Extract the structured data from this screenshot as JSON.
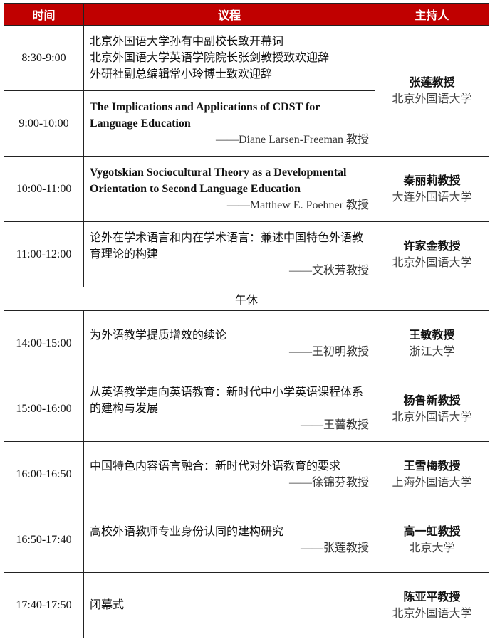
{
  "header": {
    "time": "时间",
    "agenda": "议程",
    "host": "主持人"
  },
  "rows": [
    {
      "time": "8:30-9:00",
      "lines": [
        "北京外国语大学孙有中副校长致开幕词",
        "北京外国语大学英语学院院长张剑教授致欢迎辞",
        "外研社副总编辑常小玲博士致欢迎辞"
      ]
    },
    {
      "time": "9:00-10:00",
      "title": "The Implications and Applications of CDST for Language Education",
      "speaker": "——Diane Larsen-Freeman 教授"
    },
    {
      "time": "10:00-11:00",
      "title": "Vygotskian Sociocultural Theory as a Developmental Orientation to Second Language Education",
      "speaker": "——Matthew E. Poehner 教授",
      "host_name": "秦丽莉教授",
      "host_inst": "大连外国语大学"
    },
    {
      "time": "11:00-12:00",
      "title": "论外在学术语言和内在学术语言：兼述中国特色外语教育理论的构建",
      "speaker": "——文秋芳教授",
      "host_name": "许家金教授",
      "host_inst": "北京外国语大学"
    },
    {
      "lunch": "午休"
    },
    {
      "time": "14:00-15:00",
      "title": "为外语教学提质增效的续论",
      "speaker": "——王初明教授",
      "host_name": "王敏教授",
      "host_inst": "浙江大学"
    },
    {
      "time": "15:00-16:00",
      "title": "从英语教学走向英语教育：新时代中小学英语课程体系的建构与发展",
      "speaker": "——王蔷教授",
      "host_name": "杨鲁新教授",
      "host_inst": "北京外国语大学"
    },
    {
      "time": "16:00-16:50",
      "title": "中国特色内容语言融合：新时代对外语教育的要求",
      "speaker": "——徐锦芬教授",
      "host_name": "王雪梅教授",
      "host_inst": "上海外国语大学"
    },
    {
      "time": "16:50-17:40",
      "title": "高校外语教师专业身份认同的建构研究",
      "speaker": "——张莲教授",
      "host_name": "高一虹教授",
      "host_inst": "北京大学"
    },
    {
      "time": "17:40-17:50",
      "title": "闭幕式",
      "host_name": "陈亚平教授",
      "host_inst": "北京外国语大学"
    }
  ],
  "first_host": {
    "name": "张莲教授",
    "inst": "北京外国语大学"
  },
  "colors": {
    "header_bg": "#C00000",
    "header_text": "#FFFFFF"
  }
}
